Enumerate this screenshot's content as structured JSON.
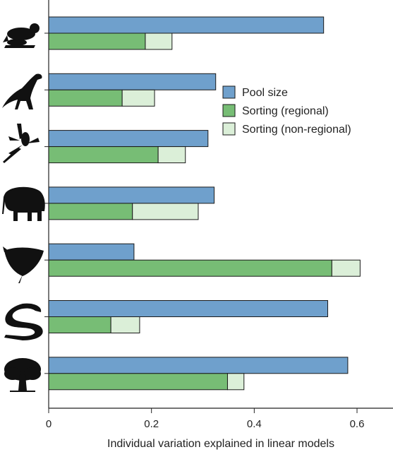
{
  "chart_data": {
    "type": "bar",
    "orientation": "horizontal",
    "stacked_secondary": true,
    "categories": [
      "frog-icon",
      "eagle-icon",
      "dragonfly-icon",
      "elephant-icon",
      "ray-icon",
      "snake-icon",
      "tree-icon"
    ],
    "series": [
      {
        "name": "Pool size",
        "color": "#6fa0cc",
        "values": [
          0.535,
          0.325,
          0.31,
          0.322,
          0.166,
          0.543,
          0.582
        ]
      },
      {
        "name": "Sorting (regional)",
        "color": "#77bd75",
        "values": [
          0.188,
          0.143,
          0.213,
          0.163,
          0.551,
          0.121,
          0.348
        ]
      },
      {
        "name": "Sorting (non-regional)",
        "color": "#dbefd8",
        "values": [
          0.052,
          0.063,
          0.053,
          0.128,
          0.055,
          0.056,
          0.032
        ]
      }
    ],
    "xlabel": "Individual variation explained in linear models",
    "xlim": [
      0,
      0.67
    ],
    "xticks": [
      "0",
      "0.2",
      "0.4",
      "0.6"
    ],
    "legend_position": "top-right",
    "grid": false
  }
}
